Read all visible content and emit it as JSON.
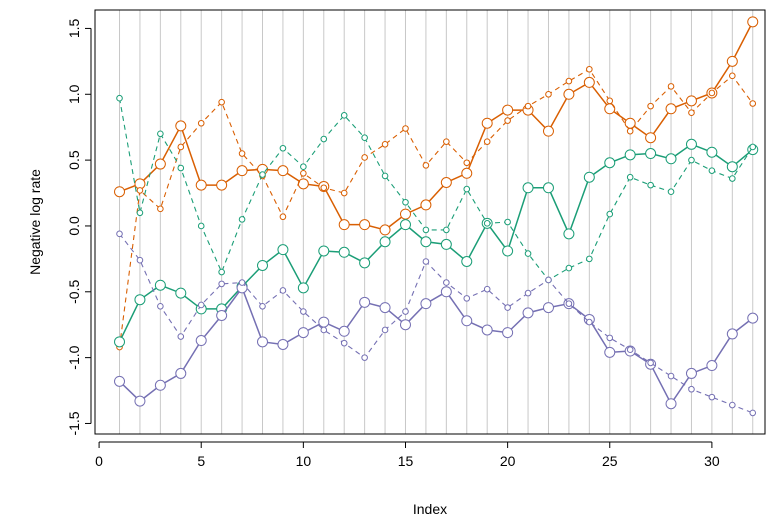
{
  "chart_data": {
    "type": "line",
    "title": "",
    "xlabel": "Index",
    "ylabel": "Negative log rate",
    "xlim": [
      0,
      32
    ],
    "ylim": [
      -1.5,
      1.5
    ],
    "xticks": [
      0,
      5,
      10,
      15,
      20,
      25,
      30
    ],
    "yticks": [
      -1.5,
      -1.0,
      -0.5,
      0.0,
      0.5,
      1.0,
      1.5
    ],
    "xtick_labels": [
      "0",
      "5",
      "10",
      "15",
      "20",
      "25",
      "30"
    ],
    "ytick_labels": [
      "-1.5",
      "-1.0",
      "-0.5",
      "0.0",
      "0.5",
      "1.0",
      "1.5"
    ],
    "vertical_gridlines": "at each index 1-32",
    "x": [
      1,
      2,
      3,
      4,
      5,
      6,
      7,
      8,
      9,
      10,
      11,
      12,
      13,
      14,
      15,
      16,
      17,
      18,
      19,
      20,
      21,
      22,
      23,
      24,
      25,
      26,
      27,
      28,
      29,
      30,
      31,
      32
    ],
    "series": [
      {
        "color": "#d95f02",
        "style": "solid",
        "marker": "large-circle",
        "values": [
          0.26,
          0.32,
          0.47,
          0.76,
          0.31,
          0.31,
          0.42,
          0.43,
          0.42,
          0.32,
          0.3,
          0.01,
          0.01,
          -0.03,
          0.09,
          0.16,
          0.33,
          0.4,
          0.78,
          0.88,
          0.88,
          0.72,
          1.0,
          1.09,
          0.89,
          0.78,
          0.67,
          0.89,
          0.95,
          1.01,
          1.25,
          1.55
        ]
      },
      {
        "color": "#d95f02",
        "style": "dashed",
        "marker": "small-circle",
        "values": [
          -0.92,
          0.27,
          0.13,
          0.6,
          0.78,
          0.94,
          0.55,
          0.38,
          0.07,
          0.4,
          0.29,
          0.25,
          0.52,
          0.62,
          0.74,
          0.46,
          0.64,
          0.48,
          0.64,
          0.8,
          0.91,
          1.0,
          1.1,
          1.19,
          0.95,
          0.72,
          0.91,
          1.06,
          0.86,
          1.01,
          1.14,
          0.93
        ]
      },
      {
        "color": "#1b9e77",
        "style": "solid",
        "marker": "large-circle",
        "values": [
          -0.88,
          -0.56,
          -0.45,
          -0.51,
          -0.63,
          -0.63,
          -0.46,
          -0.3,
          -0.18,
          -0.47,
          -0.19,
          -0.2,
          -0.28,
          -0.12,
          0.01,
          -0.12,
          -0.14,
          -0.27,
          0.02,
          -0.19,
          0.29,
          0.29,
          -0.06,
          0.37,
          0.48,
          0.54,
          0.55,
          0.51,
          0.62,
          0.56,
          0.45,
          0.58
        ]
      },
      {
        "color": "#1b9e77",
        "style": "dashed",
        "marker": "small-circle",
        "values": [
          0.97,
          0.1,
          0.7,
          0.44,
          0.0,
          -0.35,
          0.05,
          0.39,
          0.59,
          0.45,
          0.66,
          0.84,
          0.67,
          0.38,
          0.18,
          -0.03,
          -0.03,
          0.28,
          0.02,
          0.03,
          -0.21,
          -0.41,
          -0.32,
          -0.25,
          0.09,
          0.37,
          0.31,
          0.26,
          0.5,
          0.42,
          0.36,
          0.6
        ]
      },
      {
        "color": "#7570b3",
        "style": "solid",
        "marker": "large-circle",
        "values": [
          -1.18,
          -1.33,
          -1.21,
          -1.12,
          -0.87,
          -0.68,
          -0.47,
          -0.88,
          -0.9,
          -0.81,
          -0.73,
          -0.8,
          -0.58,
          -0.62,
          -0.75,
          -0.59,
          -0.5,
          -0.72,
          -0.79,
          -0.81,
          -0.66,
          -0.62,
          -0.59,
          -0.71,
          -0.96,
          -0.95,
          -1.05,
          -1.35,
          -1.12,
          -1.06,
          -0.82,
          -0.7
        ]
      },
      {
        "color": "#7570b3",
        "style": "dashed",
        "marker": "small-circle",
        "values": [
          -0.06,
          -0.26,
          -0.61,
          -0.84,
          -0.6,
          -0.44,
          -0.43,
          -0.61,
          -0.49,
          -0.65,
          -0.79,
          -0.89,
          -1.0,
          -0.79,
          -0.65,
          -0.27,
          -0.43,
          -0.55,
          -0.48,
          -0.62,
          -0.51,
          -0.41,
          -0.59,
          -0.73,
          -0.85,
          -0.94,
          -1.04,
          -1.14,
          -1.24,
          -1.3,
          -1.36,
          -1.42
        ]
      }
    ]
  }
}
